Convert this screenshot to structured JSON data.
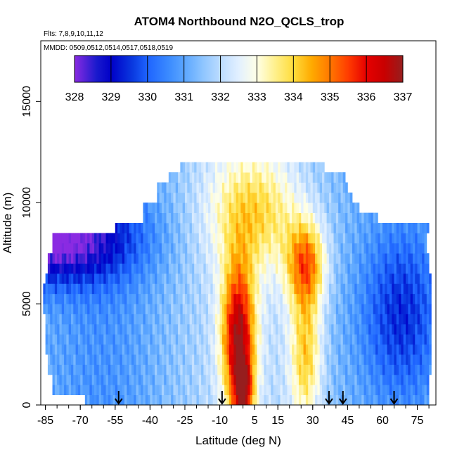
{
  "chart_data": {
    "type": "heatmap",
    "title": "ATOM4 Northbound N2O_QCLS_trop",
    "subtitle_flights": "Flts: 7,8,9,10,11,12",
    "subtitle_dates": "MMDD: 0509,0512,0514,0517,0518,0519",
    "xlabel": "Latitude (deg N)",
    "ylabel": "Altitude (m)",
    "xlim": [
      -87,
      83
    ],
    "ylim": [
      0,
      18000
    ],
    "x_ticks": [
      -85,
      -70,
      -55,
      -40,
      -25,
      -10,
      5,
      15,
      30,
      45,
      60,
      75
    ],
    "x_tick_labels": [
      "-85",
      "-70",
      "-55",
      "-40",
      "-25",
      "-10",
      "5",
      "15",
      "30",
      "45",
      "60",
      "75"
    ],
    "x_minor_tick_step": 5,
    "y_ticks": [
      0,
      5000,
      10000,
      15000
    ],
    "y_tick_labels": [
      "0",
      "5000",
      "10000",
      "15000"
    ],
    "colorbar": {
      "min": 328,
      "max": 337,
      "ticks": [
        328,
        329,
        330,
        331,
        332,
        333,
        334,
        335,
        336,
        337
      ],
      "tick_labels": [
        "328",
        "329",
        "330",
        "331",
        "332",
        "333",
        "334",
        "335",
        "336",
        "337"
      ],
      "stops": [
        [
          328,
          "#8a2be2"
        ],
        [
          328.6,
          "#1a1acd"
        ],
        [
          329,
          "#0000c8"
        ],
        [
          329.6,
          "#0a3ae0"
        ],
        [
          330,
          "#1e64ff"
        ],
        [
          330.6,
          "#3c8cff"
        ],
        [
          331,
          "#5aa5ff"
        ],
        [
          331.5,
          "#8cc4ff"
        ],
        [
          332,
          "#bcdcff"
        ],
        [
          332.5,
          "#e2f0ff"
        ],
        [
          333,
          "#ffffe6"
        ],
        [
          333.5,
          "#fff08c"
        ],
        [
          334,
          "#ffdc3c"
        ],
        [
          334.5,
          "#ffaa00"
        ],
        [
          335,
          "#ff7800"
        ],
        [
          335.5,
          "#ff3c00"
        ],
        [
          336,
          "#e60000"
        ],
        [
          336.5,
          "#c80000"
        ],
        [
          337,
          "#961e1e"
        ]
      ]
    },
    "arrow_markers_lat": [
      -53.5,
      -9,
      37,
      43,
      65
    ],
    "altitude_bins": [
      {
        "alt": 500,
        "x0": -68,
        "x1": 80
      },
      {
        "alt": 1000,
        "x0": -82,
        "x1": 80
      },
      {
        "alt": 1500,
        "x0": -82,
        "x1": 80
      },
      {
        "alt": 2000,
        "x0": -84,
        "x1": 81
      },
      {
        "alt": 2500,
        "x0": -84,
        "x1": 81
      },
      {
        "alt": 3000,
        "x0": -85,
        "x1": 81
      },
      {
        "alt": 3500,
        "x0": -85,
        "x1": 81
      },
      {
        "alt": 4000,
        "x0": -85,
        "x1": 81
      },
      {
        "alt": 4500,
        "x0": -85,
        "x1": 81
      },
      {
        "alt": 5000,
        "x0": -86,
        "x1": 81
      },
      {
        "alt": 5500,
        "x0": -86,
        "x1": 81
      },
      {
        "alt": 6000,
        "x0": -86,
        "x1": 81
      },
      {
        "alt": 6500,
        "x0": -85,
        "x1": 81
      },
      {
        "alt": 7000,
        "x0": -84,
        "x1": 80
      },
      {
        "alt": 7500,
        "x0": -84,
        "x1": 80
      },
      {
        "alt": 8000,
        "x0": -82,
        "x1": 79
      },
      {
        "alt": 8500,
        "x0": -82,
        "x1": 79
      },
      {
        "alt": 9000,
        "x0": -55,
        "x1": 80
      },
      {
        "alt": 9500,
        "x0": -43,
        "x1": 58
      },
      {
        "alt": 10000,
        "x0": -43,
        "x1": 50
      },
      {
        "alt": 10500,
        "x0": -37,
        "x1": 47
      },
      {
        "alt": 11000,
        "x0": -37,
        "x1": 45
      },
      {
        "alt": 11500,
        "x0": -32,
        "x1": 44
      },
      {
        "alt": 12000,
        "x0": -27,
        "x1": 35
      }
    ],
    "field_model": {
      "base": 331.2,
      "features": [
        {
          "name": "equatorial_plume",
          "lat": -2,
          "lat_width": 5,
          "alt": 3500,
          "alt_width": 2500,
          "amp": 4.8
        },
        {
          "name": "equatorial_core",
          "lat": 0,
          "lat_width": 3,
          "alt": 600,
          "alt_width": 1200,
          "amp": 3.5
        },
        {
          "name": "nh_mid_upper",
          "lat": 27,
          "lat_width": 6,
          "alt": 7000,
          "alt_width": 1500,
          "amp": 3.2
        },
        {
          "name": "nh_mid_lower",
          "lat": 27,
          "lat_width": 5,
          "alt": 2500,
          "alt_width": 2500,
          "amp": 2.5
        },
        {
          "name": "upper_tropics",
          "lat": 5,
          "lat_width": 14,
          "alt": 9500,
          "alt_width": 2000,
          "amp": 2.0
        },
        {
          "name": "sh_high_lat_low",
          "lat": -85,
          "lat_width": 25,
          "alt": 8200,
          "alt_width": 1500,
          "amp": -3.5
        },
        {
          "name": "nh_high_lat_low",
          "lat": 68,
          "lat_width": 12,
          "alt": 4500,
          "alt_width": 3000,
          "amp": -1.8
        }
      ]
    }
  }
}
